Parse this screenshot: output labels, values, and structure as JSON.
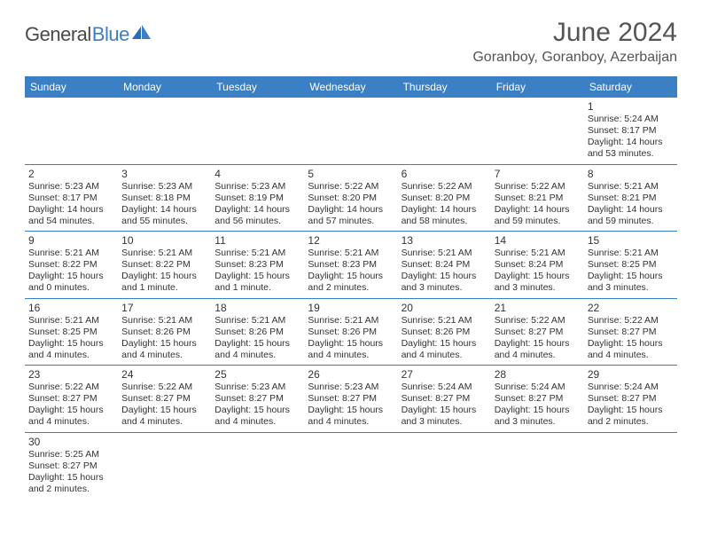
{
  "brand": {
    "part1": "General",
    "part2": "Blue"
  },
  "title": "June 2024",
  "location": "Goranboy, Goranboy, Azerbaijan",
  "colors": {
    "header_bg": "#3b7fc4",
    "header_text": "#ffffff",
    "border": "#3b7fc4",
    "body_text": "#333333",
    "title_text": "#555555"
  },
  "typography": {
    "title_fontsize": 30,
    "location_fontsize": 16,
    "dayhdr_fontsize": 12,
    "cell_fontsize": 10.5
  },
  "dayHeaders": [
    "Sunday",
    "Monday",
    "Tuesday",
    "Wednesday",
    "Thursday",
    "Friday",
    "Saturday"
  ],
  "weeks": [
    [
      null,
      null,
      null,
      null,
      null,
      null,
      {
        "n": "1",
        "sr": "Sunrise: 5:24 AM",
        "ss": "Sunset: 8:17 PM",
        "d1": "Daylight: 14 hours",
        "d2": "and 53 minutes."
      }
    ],
    [
      {
        "n": "2",
        "sr": "Sunrise: 5:23 AM",
        "ss": "Sunset: 8:17 PM",
        "d1": "Daylight: 14 hours",
        "d2": "and 54 minutes."
      },
      {
        "n": "3",
        "sr": "Sunrise: 5:23 AM",
        "ss": "Sunset: 8:18 PM",
        "d1": "Daylight: 14 hours",
        "d2": "and 55 minutes."
      },
      {
        "n": "4",
        "sr": "Sunrise: 5:23 AM",
        "ss": "Sunset: 8:19 PM",
        "d1": "Daylight: 14 hours",
        "d2": "and 56 minutes."
      },
      {
        "n": "5",
        "sr": "Sunrise: 5:22 AM",
        "ss": "Sunset: 8:20 PM",
        "d1": "Daylight: 14 hours",
        "d2": "and 57 minutes."
      },
      {
        "n": "6",
        "sr": "Sunrise: 5:22 AM",
        "ss": "Sunset: 8:20 PM",
        "d1": "Daylight: 14 hours",
        "d2": "and 58 minutes."
      },
      {
        "n": "7",
        "sr": "Sunrise: 5:22 AM",
        "ss": "Sunset: 8:21 PM",
        "d1": "Daylight: 14 hours",
        "d2": "and 59 minutes."
      },
      {
        "n": "8",
        "sr": "Sunrise: 5:21 AM",
        "ss": "Sunset: 8:21 PM",
        "d1": "Daylight: 14 hours",
        "d2": "and 59 minutes."
      }
    ],
    [
      {
        "n": "9",
        "sr": "Sunrise: 5:21 AM",
        "ss": "Sunset: 8:22 PM",
        "d1": "Daylight: 15 hours",
        "d2": "and 0 minutes."
      },
      {
        "n": "10",
        "sr": "Sunrise: 5:21 AM",
        "ss": "Sunset: 8:22 PM",
        "d1": "Daylight: 15 hours",
        "d2": "and 1 minute."
      },
      {
        "n": "11",
        "sr": "Sunrise: 5:21 AM",
        "ss": "Sunset: 8:23 PM",
        "d1": "Daylight: 15 hours",
        "d2": "and 1 minute."
      },
      {
        "n": "12",
        "sr": "Sunrise: 5:21 AM",
        "ss": "Sunset: 8:23 PM",
        "d1": "Daylight: 15 hours",
        "d2": "and 2 minutes."
      },
      {
        "n": "13",
        "sr": "Sunrise: 5:21 AM",
        "ss": "Sunset: 8:24 PM",
        "d1": "Daylight: 15 hours",
        "d2": "and 3 minutes."
      },
      {
        "n": "14",
        "sr": "Sunrise: 5:21 AM",
        "ss": "Sunset: 8:24 PM",
        "d1": "Daylight: 15 hours",
        "d2": "and 3 minutes."
      },
      {
        "n": "15",
        "sr": "Sunrise: 5:21 AM",
        "ss": "Sunset: 8:25 PM",
        "d1": "Daylight: 15 hours",
        "d2": "and 3 minutes."
      }
    ],
    [
      {
        "n": "16",
        "sr": "Sunrise: 5:21 AM",
        "ss": "Sunset: 8:25 PM",
        "d1": "Daylight: 15 hours",
        "d2": "and 4 minutes."
      },
      {
        "n": "17",
        "sr": "Sunrise: 5:21 AM",
        "ss": "Sunset: 8:26 PM",
        "d1": "Daylight: 15 hours",
        "d2": "and 4 minutes."
      },
      {
        "n": "18",
        "sr": "Sunrise: 5:21 AM",
        "ss": "Sunset: 8:26 PM",
        "d1": "Daylight: 15 hours",
        "d2": "and 4 minutes."
      },
      {
        "n": "19",
        "sr": "Sunrise: 5:21 AM",
        "ss": "Sunset: 8:26 PM",
        "d1": "Daylight: 15 hours",
        "d2": "and 4 minutes."
      },
      {
        "n": "20",
        "sr": "Sunrise: 5:21 AM",
        "ss": "Sunset: 8:26 PM",
        "d1": "Daylight: 15 hours",
        "d2": "and 4 minutes."
      },
      {
        "n": "21",
        "sr": "Sunrise: 5:22 AM",
        "ss": "Sunset: 8:27 PM",
        "d1": "Daylight: 15 hours",
        "d2": "and 4 minutes."
      },
      {
        "n": "22",
        "sr": "Sunrise: 5:22 AM",
        "ss": "Sunset: 8:27 PM",
        "d1": "Daylight: 15 hours",
        "d2": "and 4 minutes."
      }
    ],
    [
      {
        "n": "23",
        "sr": "Sunrise: 5:22 AM",
        "ss": "Sunset: 8:27 PM",
        "d1": "Daylight: 15 hours",
        "d2": "and 4 minutes."
      },
      {
        "n": "24",
        "sr": "Sunrise: 5:22 AM",
        "ss": "Sunset: 8:27 PM",
        "d1": "Daylight: 15 hours",
        "d2": "and 4 minutes."
      },
      {
        "n": "25",
        "sr": "Sunrise: 5:23 AM",
        "ss": "Sunset: 8:27 PM",
        "d1": "Daylight: 15 hours",
        "d2": "and 4 minutes."
      },
      {
        "n": "26",
        "sr": "Sunrise: 5:23 AM",
        "ss": "Sunset: 8:27 PM",
        "d1": "Daylight: 15 hours",
        "d2": "and 4 minutes."
      },
      {
        "n": "27",
        "sr": "Sunrise: 5:24 AM",
        "ss": "Sunset: 8:27 PM",
        "d1": "Daylight: 15 hours",
        "d2": "and 3 minutes."
      },
      {
        "n": "28",
        "sr": "Sunrise: 5:24 AM",
        "ss": "Sunset: 8:27 PM",
        "d1": "Daylight: 15 hours",
        "d2": "and 3 minutes."
      },
      {
        "n": "29",
        "sr": "Sunrise: 5:24 AM",
        "ss": "Sunset: 8:27 PM",
        "d1": "Daylight: 15 hours",
        "d2": "and 2 minutes."
      }
    ],
    [
      {
        "n": "30",
        "sr": "Sunrise: 5:25 AM",
        "ss": "Sunset: 8:27 PM",
        "d1": "Daylight: 15 hours",
        "d2": "and 2 minutes."
      },
      null,
      null,
      null,
      null,
      null,
      null
    ]
  ]
}
